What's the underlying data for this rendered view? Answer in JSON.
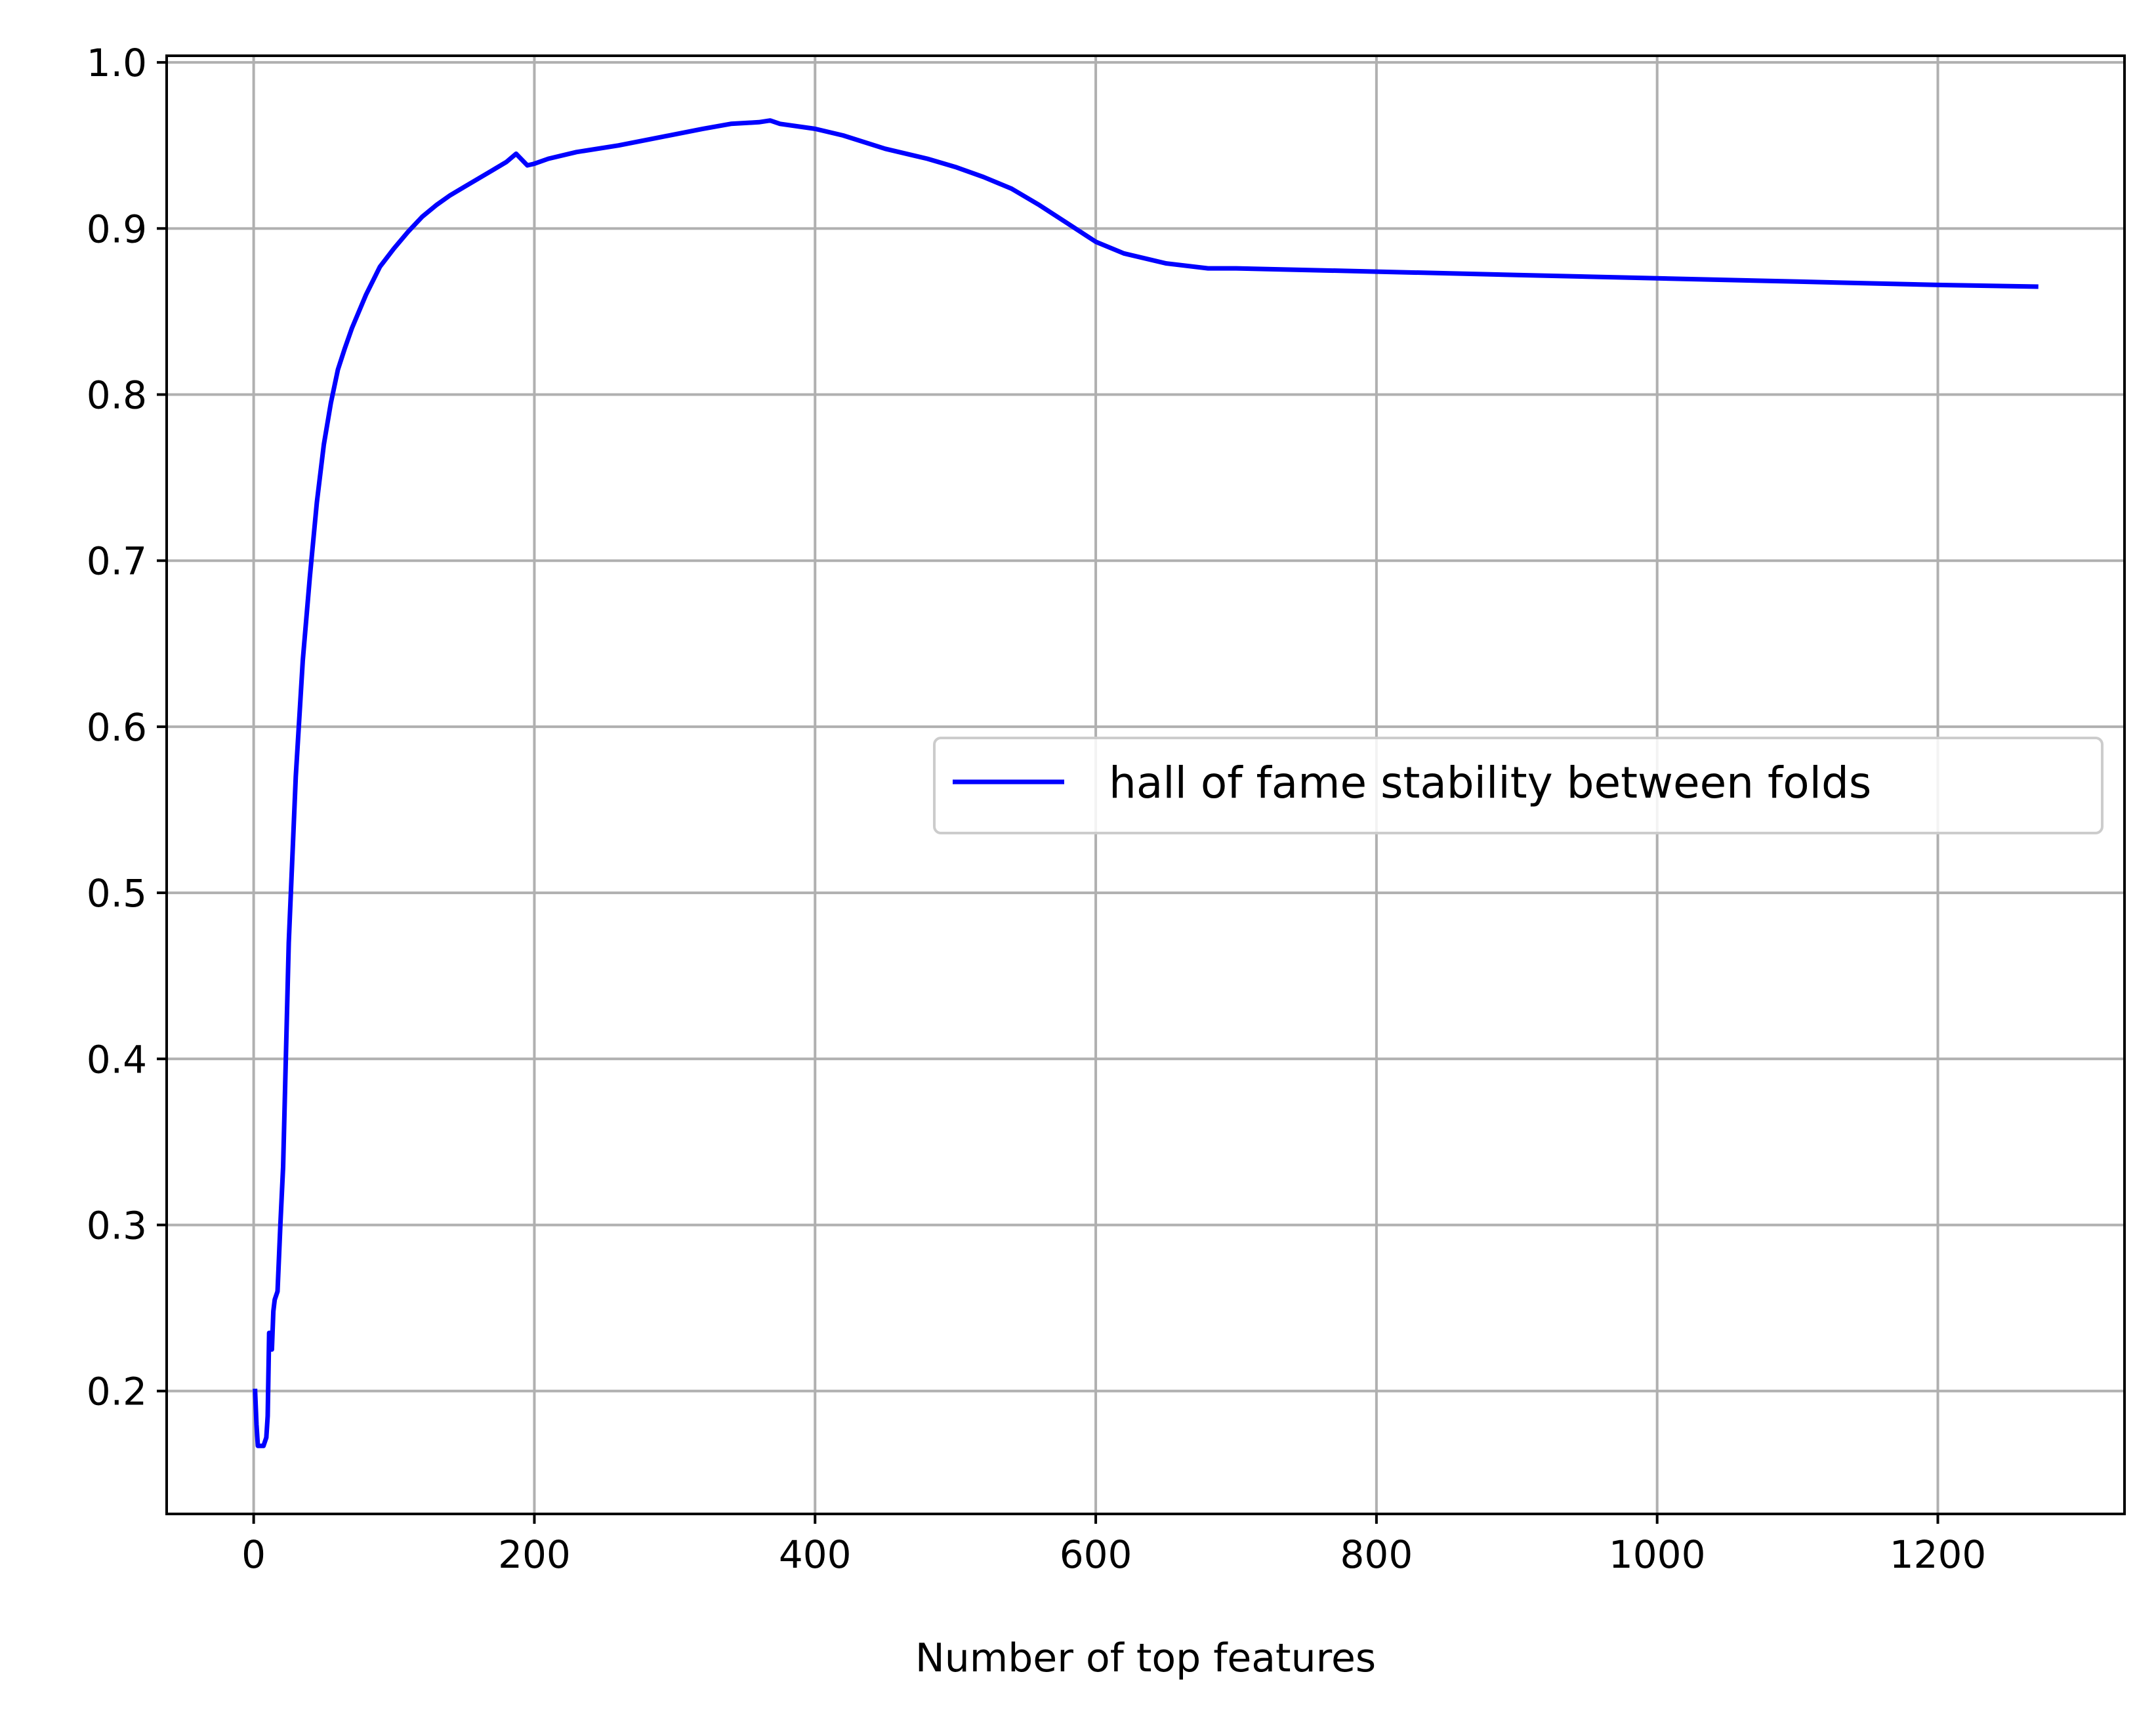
{
  "chart_data": {
    "type": "line",
    "title": "",
    "xlabel": "Number of top features",
    "ylabel": "",
    "xlim": [
      -62,
      1333
    ],
    "ylim": [
      0.126,
      1.004
    ],
    "x_ticks": [
      0,
      200,
      400,
      600,
      800,
      1000,
      1200
    ],
    "x_tick_labels": [
      "0",
      "200",
      "400",
      "600",
      "800",
      "1000",
      "1200"
    ],
    "y_ticks": [
      0.2,
      0.3,
      0.4,
      0.5,
      0.6,
      0.7,
      0.8,
      0.9,
      1.0
    ],
    "y_tick_labels": [
      "0.2",
      "0.3",
      "0.4",
      "0.5",
      "0.6",
      "0.7",
      "0.8",
      "0.9",
      "1.0"
    ],
    "grid": true,
    "legend": {
      "position": "center-right"
    },
    "series": [
      {
        "name": "hall of fame stability between folds",
        "color": "#0000ff",
        "x": [
          1,
          2,
          3,
          5,
          7,
          9,
          10,
          11,
          12,
          13,
          14,
          15,
          17,
          19,
          21,
          25,
          30,
          35,
          40,
          45,
          50,
          55,
          60,
          65,
          70,
          80,
          90,
          100,
          110,
          120,
          130,
          140,
          150,
          160,
          170,
          180,
          187,
          195,
          200,
          210,
          230,
          260,
          290,
          320,
          340,
          360,
          368,
          375,
          400,
          420,
          450,
          480,
          500,
          520,
          540,
          560,
          580,
          600,
          620,
          650,
          680,
          700,
          800,
          900,
          1000,
          1100,
          1200,
          1270
        ],
        "values": [
          0.2,
          0.18,
          0.167,
          0.167,
          0.167,
          0.172,
          0.185,
          0.235,
          0.235,
          0.225,
          0.248,
          0.255,
          0.26,
          0.3,
          0.335,
          0.47,
          0.57,
          0.64,
          0.69,
          0.735,
          0.77,
          0.795,
          0.815,
          0.828,
          0.84,
          0.86,
          0.877,
          0.888,
          0.898,
          0.907,
          0.914,
          0.92,
          0.925,
          0.93,
          0.935,
          0.94,
          0.945,
          0.938,
          0.939,
          0.942,
          0.946,
          0.95,
          0.955,
          0.96,
          0.963,
          0.964,
          0.965,
          0.963,
          0.96,
          0.956,
          0.948,
          0.942,
          0.937,
          0.931,
          0.924,
          0.914,
          0.903,
          0.892,
          0.885,
          0.879,
          0.876,
          0.876,
          0.874,
          0.872,
          0.87,
          0.868,
          0.866,
          0.865
        ]
      }
    ]
  }
}
